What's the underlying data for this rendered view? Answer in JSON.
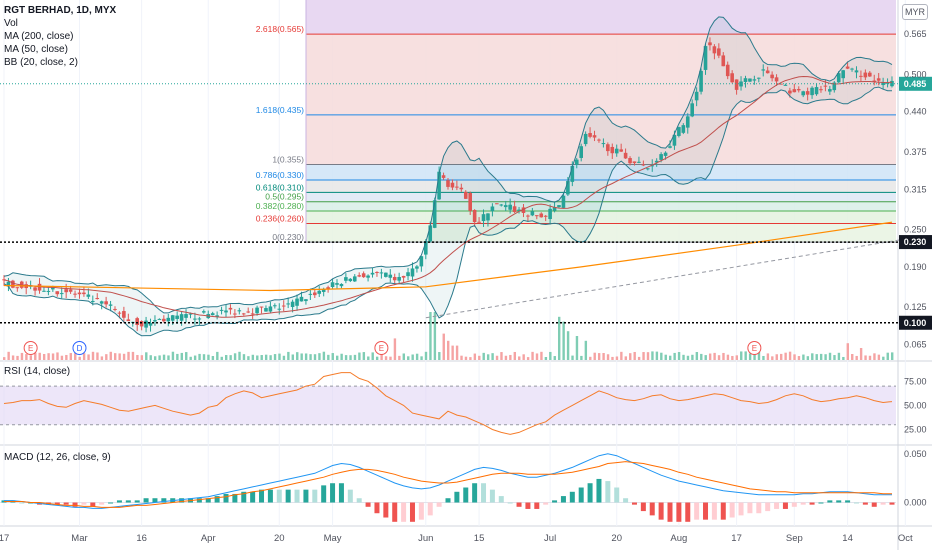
{
  "header": {
    "title": "RGT BERHAD, 1D, MYX",
    "currency": "MYR"
  },
  "legend": [
    "Vol",
    "MA (200, close)",
    "MA (50, close)",
    "BB (20, close, 2)"
  ],
  "panes": {
    "rsi_title": "RSI (14, close)",
    "macd_title": "MACD (12, 26, close, 9)"
  },
  "colors": {
    "up": "#26a69a",
    "down": "#ef5350",
    "bb_line": "#2b7a8c",
    "ma50": "#c0504d",
    "ma200": "#ff8c00",
    "rsi_line": "#f57c2a",
    "rsi_band": "#e1d5f5",
    "macd_line": "#2196f3",
    "signal_line": "#ff6d00"
  },
  "chart_data": [
    {
      "type": "candlestick",
      "title": "RGT BERHAD, 1D, MYX",
      "x_tick_labels": [
        "17",
        "Mar",
        "16",
        "Apr",
        "20",
        "May",
        "Jun",
        "15",
        "Jul",
        "20",
        "Aug",
        "17",
        "Sep",
        "14",
        "Oct"
      ],
      "y_ticks": [
        "0.565",
        "0.500",
        "0.440",
        "0.375",
        "0.315",
        "0.250",
        "0.190",
        "0.125",
        "0.065"
      ],
      "ylim": [
        0.04,
        0.62
      ],
      "last_price": "0.485",
      "price_lines": [
        "0.230",
        "0.100"
      ],
      "fib_levels": [
        {
          "label": "2.618(0.565)",
          "value": 0.565,
          "color": "#e53935"
        },
        {
          "label": "1.618(0.435)",
          "value": 0.435,
          "color": "#1e88e5"
        },
        {
          "label": "1(0.355)",
          "value": 0.355,
          "color": "#787b86"
        },
        {
          "label": "0.786(0.330)",
          "value": 0.33,
          "color": "#1e88e5"
        },
        {
          "label": "0.618(0.310)",
          "value": 0.31,
          "color": "#00897b"
        },
        {
          "label": "0.5(0.295)",
          "value": 0.295,
          "color": "#43a047"
        },
        {
          "label": "0.382(0.280)",
          "value": 0.28,
          "color": "#4caf50"
        },
        {
          "label": "0.236(0.260)",
          "value": 0.26,
          "color": "#e53935"
        },
        {
          "label": "0(0.230)",
          "value": 0.23,
          "color": "#787b86"
        }
      ],
      "events": [
        {
          "label": "E",
          "date_index": 12
        },
        {
          "label": "D",
          "date_index": 34
        },
        {
          "label": "E",
          "date_index": 170
        },
        {
          "label": "E",
          "date_index": 338
        }
      ],
      "anchors": [
        [
          0,
          0.165
        ],
        [
          10,
          0.16
        ],
        [
          20,
          0.155
        ],
        [
          30,
          0.15
        ],
        [
          40,
          0.14
        ],
        [
          50,
          0.125
        ],
        [
          58,
          0.105
        ],
        [
          64,
          0.098
        ],
        [
          72,
          0.105
        ],
        [
          80,
          0.108
        ],
        [
          90,
          0.112
        ],
        [
          100,
          0.118
        ],
        [
          110,
          0.12
        ],
        [
          120,
          0.122
        ],
        [
          130,
          0.128
        ],
        [
          140,
          0.145
        ],
        [
          150,
          0.16
        ],
        [
          160,
          0.175
        ],
        [
          170,
          0.178
        ],
        [
          180,
          0.17
        ],
        [
          188,
          0.19
        ],
        [
          193,
          0.235
        ],
        [
          198,
          0.34
        ],
        [
          203,
          0.32
        ],
        [
          210,
          0.305
        ],
        [
          215,
          0.255
        ],
        [
          222,
          0.29
        ],
        [
          230,
          0.285
        ],
        [
          238,
          0.275
        ],
        [
          245,
          0.27
        ],
        [
          252,
          0.29
        ],
        [
          258,
          0.35
        ],
        [
          264,
          0.4
        ],
        [
          270,
          0.39
        ],
        [
          278,
          0.375
        ],
        [
          285,
          0.36
        ],
        [
          292,
          0.35
        ],
        [
          300,
          0.38
        ],
        [
          308,
          0.42
        ],
        [
          314,
          0.47
        ],
        [
          318,
          0.55
        ],
        [
          322,
          0.54
        ],
        [
          326,
          0.515
        ],
        [
          332,
          0.48
        ],
        [
          338,
          0.495
        ],
        [
          345,
          0.505
        ],
        [
          352,
          0.48
        ],
        [
          360,
          0.47
        ],
        [
          368,
          0.475
        ],
        [
          375,
          0.48
        ],
        [
          380,
          0.51
        ],
        [
          384,
          0.505
        ],
        [
          390,
          0.5
        ],
        [
          396,
          0.485
        ],
        [
          400,
          0.485
        ]
      ],
      "x_ticks_at": [
        0,
        34,
        62,
        92,
        124,
        148,
        190,
        214,
        246,
        276,
        304,
        330,
        356,
        380,
        406
      ],
      "volume_spikes": [
        [
          193,
          1.0
        ],
        [
          198,
          0.55
        ],
        [
          200,
          0.4
        ],
        [
          203,
          0.3
        ],
        [
          250,
          0.9
        ],
        [
          252,
          0.8
        ],
        [
          254,
          0.6
        ],
        [
          258,
          0.5
        ],
        [
          262,
          0.4
        ],
        [
          176,
          0.45
        ],
        [
          170,
          0.25
        ],
        [
          380,
          0.35
        ],
        [
          386,
          0.25
        ]
      ],
      "ma200_points": [
        [
          0,
          0.16
        ],
        [
          120,
          0.152
        ],
        [
          190,
          0.158
        ],
        [
          260,
          0.19
        ],
        [
          330,
          0.225
        ],
        [
          400,
          0.262
        ]
      ],
      "trend_line": [
        [
          190,
          0.108
        ],
        [
          406,
          0.235
        ]
      ]
    },
    {
      "type": "line",
      "title": "RSI (14, close)",
      "y_ticks": [
        "75.00",
        "50.00",
        "25.00"
      ],
      "ylim": [
        10,
        95
      ],
      "band": [
        30,
        70
      ],
      "values": [
        52,
        53,
        55,
        55,
        56,
        52,
        49,
        48,
        52,
        55,
        53,
        51,
        48,
        45,
        44,
        46,
        48,
        50,
        47,
        44,
        42,
        40,
        42,
        48,
        50,
        58,
        62,
        65,
        63,
        58,
        60,
        62,
        64,
        66,
        70,
        72,
        80,
        82,
        84,
        84,
        78,
        75,
        68,
        60,
        55,
        50,
        42,
        40,
        38,
        36,
        44,
        40,
        38,
        34,
        30,
        25,
        22,
        20,
        22,
        26,
        30,
        33,
        40,
        45,
        50,
        55,
        60,
        65,
        62,
        58,
        56,
        55,
        57,
        60,
        61,
        57,
        55,
        56,
        58,
        60,
        62,
        61,
        58,
        55,
        54,
        52,
        53,
        56,
        60,
        62,
        60,
        56,
        54,
        55,
        57,
        58,
        60,
        58,
        55,
        53,
        54
      ]
    },
    {
      "type": "bar",
      "title": "MACD (12, 26, close, 9)",
      "y_ticks": [
        "0.050",
        "0.000"
      ],
      "ylim": [
        -0.02,
        0.058
      ],
      "macd": [
        0.002,
        0.002,
        0.001,
        0.0,
        -0.001,
        -0.002,
        -0.003,
        -0.004,
        -0.005,
        -0.005,
        -0.006,
        -0.006,
        -0.005,
        -0.004,
        -0.003,
        -0.002,
        -0.001,
        0.0,
        0.001,
        0.002,
        0.003,
        0.004,
        0.005,
        0.006,
        0.008,
        0.01,
        0.012,
        0.014,
        0.016,
        0.018,
        0.02,
        0.022,
        0.024,
        0.026,
        0.028,
        0.03,
        0.034,
        0.038,
        0.04,
        0.039,
        0.036,
        0.032,
        0.028,
        0.024,
        0.02,
        0.017,
        0.015,
        0.014,
        0.015,
        0.018,
        0.022,
        0.026,
        0.03,
        0.034,
        0.036,
        0.035,
        0.033,
        0.03,
        0.028,
        0.026,
        0.026,
        0.028,
        0.03,
        0.033,
        0.036,
        0.04,
        0.044,
        0.048,
        0.05,
        0.048,
        0.044,
        0.04,
        0.036,
        0.032,
        0.028,
        0.025,
        0.022,
        0.02,
        0.018,
        0.016,
        0.014,
        0.012,
        0.011,
        0.01,
        0.009,
        0.008,
        0.008,
        0.008,
        0.008,
        0.008,
        0.009,
        0.009,
        0.01,
        0.011,
        0.011,
        0.011,
        0.01,
        0.009,
        0.008,
        0.008,
        0.008
      ],
      "signal": [
        0.001,
        0.001,
        0.001,
        0.0,
        0.0,
        -0.001,
        -0.002,
        -0.003,
        -0.003,
        -0.004,
        -0.004,
        -0.005,
        -0.005,
        -0.005,
        -0.004,
        -0.003,
        -0.003,
        -0.002,
        -0.001,
        0.0,
        0.001,
        0.002,
        0.003,
        0.004,
        0.005,
        0.006,
        0.008,
        0.009,
        0.011,
        0.012,
        0.014,
        0.016,
        0.018,
        0.02,
        0.022,
        0.024,
        0.026,
        0.029,
        0.031,
        0.033,
        0.034,
        0.034,
        0.033,
        0.031,
        0.029,
        0.026,
        0.024,
        0.022,
        0.021,
        0.02,
        0.02,
        0.021,
        0.023,
        0.025,
        0.027,
        0.029,
        0.03,
        0.03,
        0.03,
        0.029,
        0.029,
        0.029,
        0.029,
        0.03,
        0.031,
        0.033,
        0.035,
        0.037,
        0.04,
        0.041,
        0.042,
        0.041,
        0.04,
        0.038,
        0.036,
        0.034,
        0.031,
        0.029,
        0.026,
        0.024,
        0.022,
        0.02,
        0.018,
        0.016,
        0.014,
        0.013,
        0.012,
        0.011,
        0.011,
        0.01,
        0.01,
        0.01,
        0.01,
        0.01,
        0.01,
        0.01,
        0.01,
        0.01,
        0.01,
        0.009,
        0.009
      ]
    }
  ]
}
